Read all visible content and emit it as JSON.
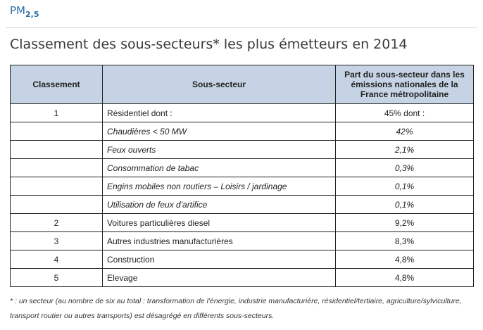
{
  "pollutant": {
    "label": "PM",
    "subscript": "2,5"
  },
  "title": "Classement des sous-secteurs* les plus émetteurs en 2014",
  "table": {
    "headers": [
      "Classement",
      "Sous-secteur",
      "Part du sous-secteur dans les émissions nationales de la France métropolitaine"
    ],
    "rows": [
      {
        "rank": "1",
        "sector": "Résidentiel dont :",
        "share": "45% dont :",
        "italic": false
      },
      {
        "rank": "",
        "sector": "Chaudières < 50 MW",
        "share": "42%",
        "italic": true
      },
      {
        "rank": "",
        "sector": "Feux ouverts",
        "share": "2,1%",
        "italic": true
      },
      {
        "rank": "",
        "sector": "Consommation de tabac",
        "share": "0,3%",
        "italic": true
      },
      {
        "rank": "",
        "sector": "Engins mobiles non routiers – Loisirs / jardinage",
        "share": "0,1%",
        "italic": true
      },
      {
        "rank": "",
        "sector": "Utilisation de feux d'artifice",
        "share": "0,1%",
        "italic": true
      },
      {
        "rank": "2",
        "sector": "Voitures particulières diesel",
        "share": "9,2%",
        "italic": false
      },
      {
        "rank": "3",
        "sector": "Autres industries manufacturières",
        "share": "8,3%",
        "italic": false
      },
      {
        "rank": "4",
        "sector": "Construction",
        "share": "4,8%",
        "italic": false
      },
      {
        "rank": "5",
        "sector": "Elevage",
        "share": "4,8%",
        "italic": false
      }
    ]
  },
  "footnote": "* : un secteur (au nombre de six au total : transformation de l'énergie, industrie manufacturière, résidentiel/tertiaire, agriculture/sylviculture, transport routier ou autres transports) est désagrégé en différents sous-secteurs.",
  "colors": {
    "header_bg": "#c5d3e4",
    "pollutant_blue": "#2a6fa8"
  }
}
